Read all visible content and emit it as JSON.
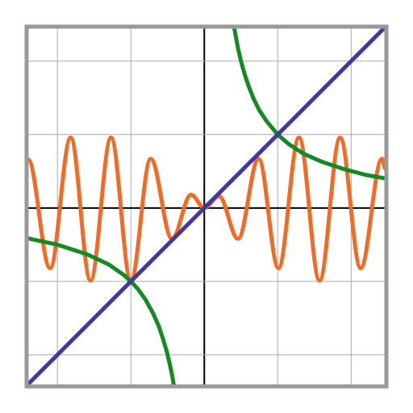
{
  "chart_data": {
    "type": "line",
    "xlim": [
      -2.42,
      2.48
    ],
    "ylim": [
      -2.43,
      2.47
    ],
    "xticks": [
      -2,
      -1,
      0,
      1,
      2
    ],
    "yticks": [
      -2,
      -1,
      0,
      1,
      2
    ],
    "grid": true,
    "series": [
      {
        "color": "#f26a24",
        "smooth": true,
        "x": [
          -2.4,
          -2.1,
          -1.82,
          -1.55,
          -1.27,
          -1.0,
          -0.73,
          -0.44,
          -0.18,
          0,
          0.2,
          0.46,
          0.74,
          1.01,
          1.29,
          1.57,
          1.85,
          2.13,
          2.42,
          2.47
        ],
        "values": [
          0.66,
          -0.82,
          0.96,
          -0.99,
          0.96,
          -0.99,
          0.67,
          -0.42,
          0.18,
          0,
          0.16,
          -0.42,
          0.67,
          -0.82,
          0.96,
          -0.99,
          0.96,
          -0.82,
          0.67,
          0.53
        ]
      },
      {
        "color": "#138a24",
        "smooth": false,
        "x": [
          -2.42,
          -2.0,
          -1.6,
          -1.3,
          -1.1,
          -1.0,
          -0.9,
          -0.8,
          -0.7,
          -0.62,
          -0.56,
          -0.51,
          -0.47,
          -0.44,
          -0.41,
          null,
          0.405,
          0.43,
          0.46,
          0.5,
          0.55,
          0.6,
          0.67,
          0.75,
          0.85,
          1.0,
          1.15,
          1.35,
          1.6,
          1.9,
          2.2,
          2.48
        ],
        "values": [
          -0.41,
          -0.5,
          -0.63,
          -0.77,
          -0.91,
          -1.0,
          -1.11,
          -1.25,
          -1.43,
          -1.61,
          -1.79,
          -1.96,
          -2.13,
          -2.27,
          -2.44,
          null,
          2.47,
          2.33,
          2.17,
          2.0,
          1.82,
          1.67,
          1.49,
          1.33,
          1.18,
          1.0,
          0.87,
          0.74,
          0.63,
          0.53,
          0.45,
          0.4
        ]
      },
      {
        "color": "#4336ad",
        "smooth": false,
        "x": [
          -2.42,
          2.48
        ],
        "values": [
          -2.42,
          2.48
        ]
      }
    ]
  }
}
